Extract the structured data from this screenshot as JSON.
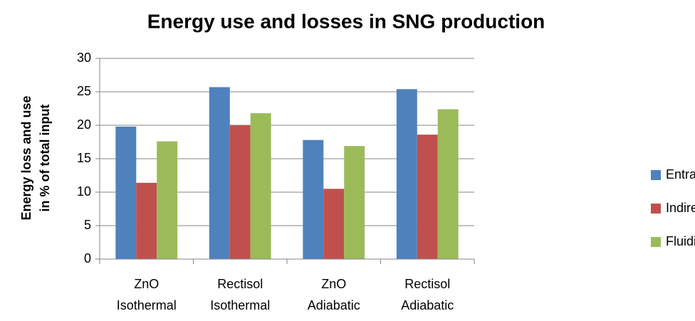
{
  "chart_data": {
    "type": "bar",
    "title": "Energy use and losses in SNG production",
    "y_label": "Energy loss and use in % of total input",
    "categories": [
      "ZnO Isothermal",
      "Rectisol Isothermal",
      "ZnO Adiabatic",
      "Rectisol Adiabatic"
    ],
    "series": [
      {
        "name": "Entrained flow gasifier",
        "color": "#4f81bd",
        "values": [
          19.8,
          25.7,
          17.8,
          25.4
        ]
      },
      {
        "name": "Indirect gasifier",
        "color": "#c0504d",
        "values": [
          11.4,
          20.0,
          10.5,
          18.6
        ]
      },
      {
        "name": "Fluidized bed gasifier",
        "color": "#9bbb59",
        "values": [
          17.6,
          21.8,
          16.9,
          22.4
        ]
      }
    ],
    "ylim": [
      0,
      30
    ],
    "yticks": [
      0,
      5,
      10,
      15,
      20,
      25,
      30
    ],
    "grid": true,
    "legend": "right"
  }
}
